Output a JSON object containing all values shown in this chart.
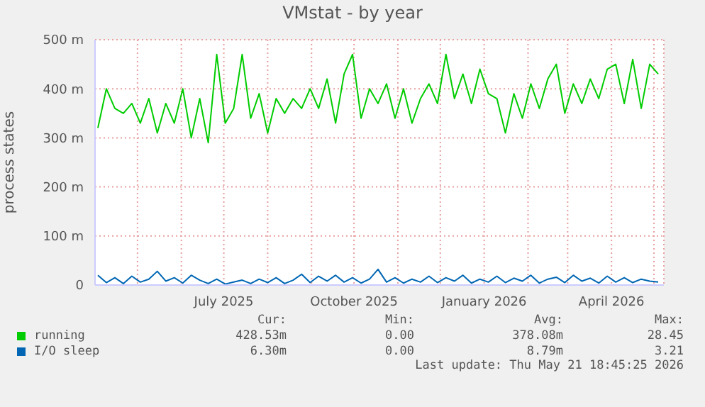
{
  "chart_data": {
    "type": "line",
    "title": "VMstat - by year",
    "ylabel": "process states",
    "x": [
      "2025-04-03",
      "2025-04-09",
      "2025-04-15",
      "2025-04-21",
      "2025-04-27",
      "2025-05-03",
      "2025-05-09",
      "2025-05-15",
      "2025-05-21",
      "2025-05-27",
      "2025-06-02",
      "2025-06-08",
      "2025-06-14",
      "2025-06-20",
      "2025-06-26",
      "2025-07-02",
      "2025-07-08",
      "2025-07-14",
      "2025-07-20",
      "2025-07-26",
      "2025-08-01",
      "2025-08-07",
      "2025-08-13",
      "2025-08-19",
      "2025-08-25",
      "2025-08-31",
      "2025-09-06",
      "2025-09-12",
      "2025-09-18",
      "2025-09-24",
      "2025-09-30",
      "2025-10-06",
      "2025-10-12",
      "2025-10-18",
      "2025-10-24",
      "2025-10-30",
      "2025-11-05",
      "2025-11-11",
      "2025-11-17",
      "2025-11-23",
      "2025-11-29",
      "2025-12-05",
      "2025-12-11",
      "2025-12-17",
      "2025-12-23",
      "2025-12-29",
      "2026-01-04",
      "2026-01-10",
      "2026-01-16",
      "2026-01-22",
      "2026-01-28",
      "2026-02-03",
      "2026-02-09",
      "2026-02-15",
      "2026-02-21",
      "2026-02-27",
      "2026-03-05",
      "2026-03-11",
      "2026-03-17",
      "2026-03-23",
      "2026-03-29",
      "2026-04-04",
      "2026-04-10",
      "2026-04-16",
      "2026-04-22",
      "2026-04-28",
      "2026-05-04"
    ],
    "series": [
      {
        "name": "running",
        "color": "#00cc00",
        "values": [
          320,
          400,
          360,
          350,
          370,
          330,
          380,
          310,
          370,
          330,
          400,
          300,
          380,
          290,
          470,
          330,
          360,
          470,
          340,
          390,
          310,
          380,
          350,
          380,
          360,
          400,
          360,
          420,
          330,
          430,
          470,
          340,
          400,
          370,
          410,
          340,
          400,
          330,
          380,
          410,
          370,
          470,
          380,
          430,
          370,
          440,
          390,
          380,
          310,
          390,
          340,
          410,
          360,
          420,
          450,
          350,
          410,
          370,
          420,
          380,
          440,
          450,
          370,
          460,
          360,
          450,
          430
        ]
      },
      {
        "name": "I/O sleep",
        "color": "#0066b3",
        "values": [
          20,
          5,
          15,
          3,
          18,
          6,
          12,
          28,
          8,
          15,
          4,
          20,
          10,
          3,
          12,
          2,
          6,
          10,
          3,
          12,
          5,
          15,
          3,
          10,
          22,
          5,
          18,
          8,
          20,
          6,
          15,
          4,
          12,
          32,
          6,
          15,
          4,
          12,
          6,
          18,
          5,
          15,
          8,
          20,
          4,
          12,
          6,
          18,
          5,
          14,
          8,
          20,
          4,
          12,
          16,
          5,
          20,
          8,
          14,
          4,
          18,
          6,
          15,
          5,
          12,
          8,
          6
        ]
      }
    ],
    "ylim": [
      0,
      500
    ],
    "yticks": [
      0,
      {
        "value": 100,
        "label": "100 m"
      },
      {
        "value": 200,
        "label": "200 m"
      },
      {
        "value": 300,
        "label": "300 m"
      },
      {
        "value": 400,
        "label": "400 m"
      },
      {
        "value": 500,
        "label": "500 m"
      }
    ],
    "xlim": [
      "2025-04-01",
      "2026-05-08"
    ],
    "xticks": [
      {
        "value": "2025-05-01",
        "label": null
      },
      {
        "value": "2025-06-01",
        "label": null
      },
      {
        "value": "2025-07-01",
        "label": "July 2025"
      },
      {
        "value": "2025-08-01",
        "label": null
      },
      {
        "value": "2025-09-01",
        "label": null
      },
      {
        "value": "2025-10-01",
        "label": "October 2025"
      },
      {
        "value": "2025-11-01",
        "label": null
      },
      {
        "value": "2025-12-01",
        "label": null
      },
      {
        "value": "2026-01-01",
        "label": "January 2026"
      },
      {
        "value": "2026-02-01",
        "label": null
      },
      {
        "value": "2026-03-01",
        "label": null
      },
      {
        "value": "2026-04-01",
        "label": "April 2026"
      },
      {
        "value": "2026-05-01",
        "label": null
      }
    ],
    "grid": true,
    "legend": "bottom",
    "marker": "none",
    "line_style": "solid",
    "annotations": [
      "Cur:",
      "Min:",
      "Avg:",
      "Max:",
      "428.53m",
      "0.00",
      "378.08m",
      "28.45",
      "6.30m",
      "0.00",
      "8.79m",
      "3.21",
      "Last update: Thu May 21 18:45:25 2026"
    ]
  }
}
